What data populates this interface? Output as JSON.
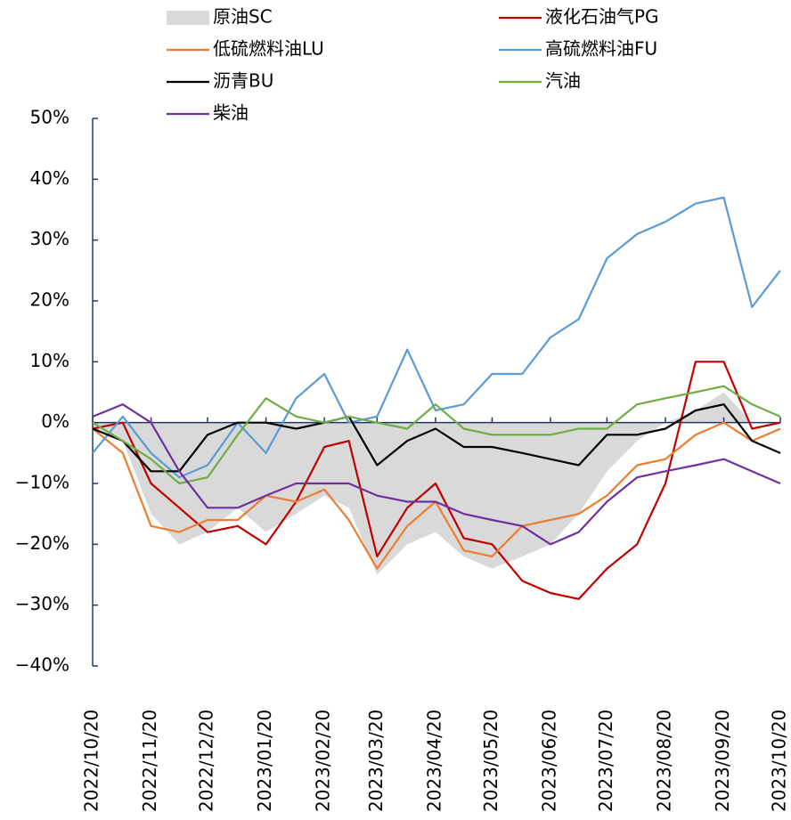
{
  "chart_data": {
    "type": "line",
    "x": [
      "2022/10/20",
      "2022/11/05",
      "2022/11/20",
      "2022/12/05",
      "2022/12/20",
      "2023/01/05",
      "2023/01/20",
      "2023/02/05",
      "2023/02/20",
      "2023/03/05",
      "2023/03/20",
      "2023/04/05",
      "2023/04/20",
      "2023/05/05",
      "2023/05/20",
      "2023/06/05",
      "2023/06/20",
      "2023/07/05",
      "2023/07/20",
      "2023/08/05",
      "2023/08/20",
      "2023/09/05",
      "2023/09/20",
      "2023/10/05",
      "2023/10/20"
    ],
    "xlim": [
      "2022/10/20",
      "2023/10/20"
    ],
    "xticks": [
      "2022/10/20",
      "2022/11/20",
      "2022/12/20",
      "2023/01/20",
      "2023/02/20",
      "2023/03/20",
      "2023/04/20",
      "2023/05/20",
      "2023/06/20",
      "2023/07/20",
      "2023/08/20",
      "2023/09/20",
      "2023/10/20"
    ],
    "ylim": [
      -40,
      50
    ],
    "yticks": [
      {
        "value": 50,
        "label": "50%"
      },
      {
        "value": 40,
        "label": "40%"
      },
      {
        "value": 30,
        "label": "30%"
      },
      {
        "value": 20,
        "label": "20%"
      },
      {
        "value": 10,
        "label": "10%"
      },
      {
        "value": 0,
        "label": "0%"
      },
      {
        "value": -10,
        "label": "−10%"
      },
      {
        "value": -20,
        "label": "−20%"
      },
      {
        "value": -30,
        "label": "−30%"
      },
      {
        "value": -40,
        "label": "−40%"
      }
    ],
    "series": [
      {
        "name": "原油SC",
        "kind": "area",
        "color": "#d9d9d9",
        "values": [
          -1,
          -3,
          -15,
          -20,
          -18,
          -14,
          -18,
          -15,
          -12,
          -14,
          -25,
          -20,
          -18,
          -22,
          -24,
          -22,
          -20,
          -15,
          -8,
          -3,
          0,
          2,
          5,
          0,
          0
        ]
      },
      {
        "name": "液化石油气PG",
        "color": "#c00000",
        "values": [
          -1,
          0,
          -10,
          -14,
          -18,
          -17,
          -20,
          -13,
          -4,
          -3,
          -22,
          -14,
          -10,
          -19,
          -20,
          -26,
          -28,
          -29,
          -24,
          -20,
          -10,
          10,
          10,
          -1,
          0
        ]
      },
      {
        "name": "低硫燃料油LU",
        "color": "#ed7d31",
        "values": [
          -1,
          -5,
          -17,
          -18,
          -16,
          -16,
          -12,
          -13,
          -11,
          -16,
          -24,
          -17,
          -13,
          -21,
          -22,
          -17,
          -16,
          -15,
          -12,
          -7,
          -6,
          -2,
          0,
          -3,
          -1
        ]
      },
      {
        "name": "高硫燃料油FU",
        "color": "#5b9bd5",
        "values": [
          -5,
          1,
          -5,
          -9,
          -7,
          0,
          -5,
          4,
          8,
          0,
          1,
          12,
          2,
          3,
          8,
          8,
          14,
          17,
          27,
          31,
          33,
          36,
          37,
          19,
          25
        ]
      },
      {
        "name": "沥青BU",
        "color": "#000000",
        "values": [
          -1,
          -3,
          -8,
          -8,
          -2,
          0,
          0,
          -1,
          0,
          1,
          -7,
          -3,
          -1,
          -4,
          -4,
          -5,
          -6,
          -7,
          -2,
          -2,
          -1,
          2,
          3,
          -3,
          -5
        ]
      },
      {
        "name": "汽油",
        "color": "#70ad47",
        "values": [
          0,
          -3,
          -6,
          -10,
          -9,
          -2,
          4,
          1,
          0,
          1,
          0,
          -1,
          3,
          -1,
          -2,
          -2,
          -2,
          -1,
          -1,
          3,
          4,
          5,
          6,
          3,
          1
        ]
      },
      {
        "name": "柴油",
        "color": "#7030a0",
        "values": [
          1,
          3,
          0,
          -8,
          -14,
          -14,
          -12,
          -10,
          -10,
          -10,
          -12,
          -13,
          -13,
          -15,
          -16,
          -17,
          -20,
          -18,
          -13,
          -9,
          -8,
          -7,
          -6,
          -8,
          -10
        ]
      }
    ]
  }
}
